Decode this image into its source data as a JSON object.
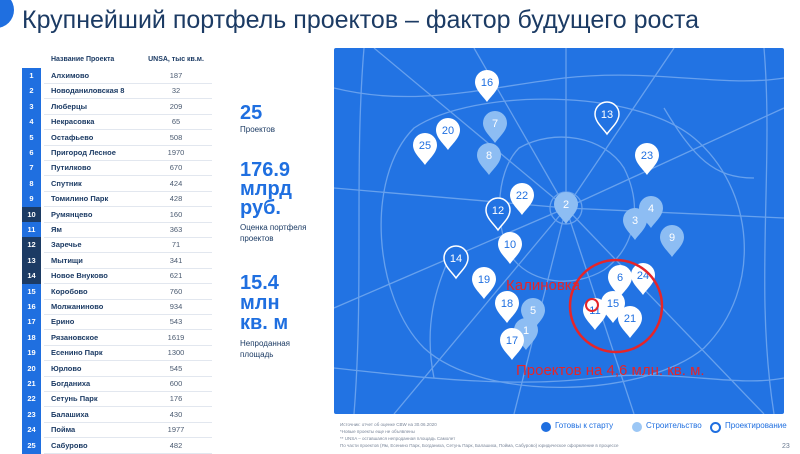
{
  "title": "Крупнейший портфель проектов – фактор будущего роста",
  "table": {
    "col_name": "Название Проекта",
    "col_value": "UNSA, тыс кв.м.",
    "rows": [
      {
        "n": "1",
        "name": "Алхимово",
        "value": "187",
        "status": "ready"
      },
      {
        "n": "2",
        "name": "Новоданиловская 8",
        "value": "32",
        "status": "ready"
      },
      {
        "n": "3",
        "name": "Люберцы",
        "value": "209",
        "status": "ready"
      },
      {
        "n": "4",
        "name": "Некрасовка",
        "value": "65",
        "status": "ready"
      },
      {
        "n": "5",
        "name": "Остафьево",
        "value": "508",
        "status": "ready"
      },
      {
        "n": "6",
        "name": "Пригород Лесное",
        "value": "1970",
        "status": "ready"
      },
      {
        "n": "7",
        "name": "Путилково",
        "value": "670",
        "status": "ready"
      },
      {
        "n": "8",
        "name": "Спутник",
        "value": "424",
        "status": "ready"
      },
      {
        "n": "9",
        "name": "Томилино Парк",
        "value": "428",
        "status": "ready"
      },
      {
        "n": "10",
        "name": "Румянцево",
        "value": "160",
        "status": "design"
      },
      {
        "n": "11",
        "name": "Ям",
        "value": "363",
        "status": "ready"
      },
      {
        "n": "12",
        "name": "Заречье",
        "value": "71",
        "status": "design"
      },
      {
        "n": "13",
        "name": "Мытищи",
        "value": "341",
        "status": "design"
      },
      {
        "n": "14",
        "name": "Новое Внуково",
        "value": "621",
        "status": "design"
      },
      {
        "n": "15",
        "name": "Коробово",
        "value": "760",
        "status": "ready"
      },
      {
        "n": "16",
        "name": "Молжаниново",
        "value": "934",
        "status": "ready"
      },
      {
        "n": "17",
        "name": "Ерино",
        "value": "543",
        "status": "ready"
      },
      {
        "n": "18",
        "name": "Рязановское",
        "value": "1619",
        "status": "ready"
      },
      {
        "n": "19",
        "name": "Есенино Парк",
        "value": "1300",
        "status": "ready"
      },
      {
        "n": "20",
        "name": "Юрлово",
        "value": "545",
        "status": "ready"
      },
      {
        "n": "21",
        "name": "Богданиха",
        "value": "600",
        "status": "ready"
      },
      {
        "n": "22",
        "name": "Сетунь Парк",
        "value": "176",
        "status": "ready"
      },
      {
        "n": "23",
        "name": "Балашиха",
        "value": "430",
        "status": "ready"
      },
      {
        "n": "24",
        "name": "Пойма",
        "value": "1977",
        "status": "ready"
      },
      {
        "n": "25",
        "name": "Сабурово",
        "value": "482",
        "status": "ready"
      }
    ]
  },
  "stats": {
    "projects_value": "25",
    "projects_label": "Проектов",
    "valuation_value_1": "176.9",
    "valuation_value_2": "млрд",
    "valuation_value_3": "руб.",
    "valuation_label_1": "Оценка портфеля",
    "valuation_label_2": "проектов",
    "area_value_1": "15.4",
    "area_value_2": "млн",
    "area_value_3": "кв. м",
    "area_label_1": "Непроданная",
    "area_label_2": "площадь"
  },
  "map": {
    "annotation_place": "Калиновка",
    "annotation_projects": "Проектов на 4,6 млн. кв. м.",
    "pins": [
      {
        "n": "1",
        "style": "light"
      },
      {
        "n": "2",
        "style": "light"
      },
      {
        "n": "3",
        "style": "light"
      },
      {
        "n": "4",
        "style": "light"
      },
      {
        "n": "5",
        "style": "light"
      },
      {
        "n": "6",
        "style": "white"
      },
      {
        "n": "7",
        "style": "light"
      },
      {
        "n": "8",
        "style": "light"
      },
      {
        "n": "9",
        "style": "light"
      },
      {
        "n": "10",
        "style": "white"
      },
      {
        "n": "11",
        "style": "white"
      },
      {
        "n": "12",
        "style": "outline"
      },
      {
        "n": "13",
        "style": "outline"
      },
      {
        "n": "14",
        "style": "outline"
      },
      {
        "n": "15",
        "style": "white"
      },
      {
        "n": "16",
        "style": "white"
      },
      {
        "n": "17",
        "style": "white"
      },
      {
        "n": "18",
        "style": "white"
      },
      {
        "n": "19",
        "style": "white"
      },
      {
        "n": "20",
        "style": "white"
      },
      {
        "n": "21",
        "style": "white"
      },
      {
        "n": "22",
        "style": "white"
      },
      {
        "n": "23",
        "style": "white"
      },
      {
        "n": "24",
        "style": "white"
      },
      {
        "n": "25",
        "style": "white"
      }
    ]
  },
  "footnotes": {
    "line1": "Источник: отчет об оценке CBW на 30.06.2020",
    "line2": "*Новые проекты еще не объявлены",
    "line3": "** UNSA – оставшаяся непроданная площадь Самолет",
    "line4": "По части проектов (Ям, Есенино Парк, Богданиха, Сетунь Парк, Балашиха, Пойма, Сабурово) юридическое оформление в процессе"
  },
  "legend": {
    "ready": "Готовы к старту",
    "construction": "Строительство",
    "design": "Проектирование"
  },
  "page_number": "23",
  "colors": {
    "brand_blue": "#1f6fe0",
    "navy": "#1c3b64",
    "map_bg": "#2273e3",
    "annotation_red": "#e5252a"
  }
}
